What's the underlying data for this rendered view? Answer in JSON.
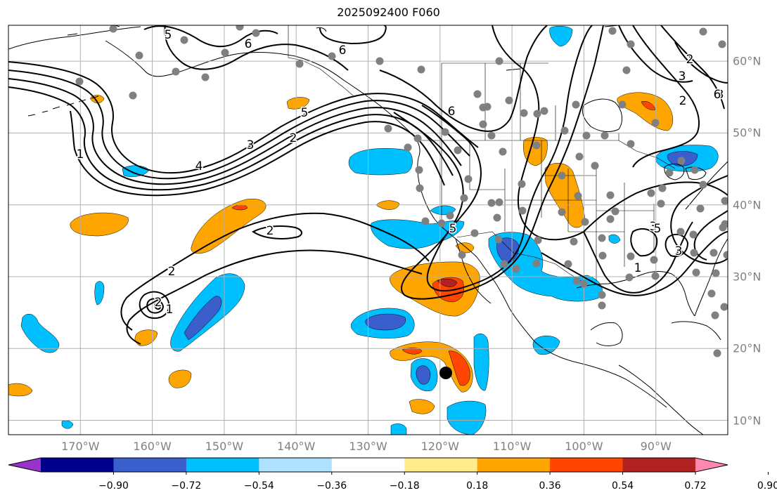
{
  "title": "2025092400 F060",
  "map": {
    "lon_range": [
      -180,
      -80
    ],
    "lat_range": [
      8,
      65
    ],
    "lon_ticks": [
      "170°W",
      "160°W",
      "150°W",
      "140°W",
      "130°W",
      "120°W",
      "110°W",
      "100°W",
      "90°W"
    ],
    "lon_tick_values": [
      -170,
      -160,
      -150,
      -140,
      -130,
      -120,
      -110,
      -100,
      -90
    ],
    "lat_ticks": [
      "10°N",
      "20°N",
      "30°N",
      "40°N",
      "50°N",
      "60°N"
    ],
    "lat_tick_values": [
      10,
      20,
      30,
      40,
      50,
      60
    ],
    "gridlines": true,
    "storm_center": {
      "lon": -119.2,
      "lat": 16.6
    }
  },
  "contour_labels": [
    "5",
    "6",
    "6",
    "6",
    "5",
    "4",
    "3",
    "2",
    "1",
    "2",
    "5",
    "3",
    "2",
    "1",
    "2",
    "3",
    "2",
    "2",
    "3",
    "3",
    "5",
    "1",
    "6"
  ],
  "colorbar": {
    "ticks": [
      "−0.90",
      "−0.72",
      "−0.54",
      "−0.36",
      "−0.18",
      "0.18",
      "0.36",
      "0.54",
      "0.72",
      "0.90"
    ],
    "colors": [
      "#9932CC",
      "#00008B",
      "#3A5FCD",
      "#00BFFF",
      "#B0E2FF",
      "#FFFFFF",
      "#FFEC8B",
      "#FFA500",
      "#FF4500",
      "#B22222",
      "#FF88B0"
    ],
    "extend": "both"
  },
  "colors": {
    "land_outline": "#000000",
    "grid": "#b0b0b0",
    "station_dots": "#808080",
    "contours": "#000000"
  }
}
